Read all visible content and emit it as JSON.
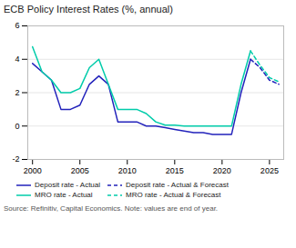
{
  "chart_data": {
    "type": "line",
    "title": "ECB Policy Interest Rates (%, annual)",
    "source": "Source: Refinitiv, Capital Economics. Note: values are end of year.",
    "x": [
      2000,
      2001,
      2002,
      2003,
      2004,
      2005,
      2006,
      2007,
      2008,
      2009,
      2010,
      2011,
      2012,
      2013,
      2014,
      2015,
      2016,
      2017,
      2018,
      2019,
      2020,
      2021,
      2022,
      2023,
      2024,
      2025,
      2026
    ],
    "series": [
      {
        "name": "Deposit rate - Actual",
        "color": "#2222bb",
        "line_style": "solid",
        "values": [
          3.75,
          3.25,
          2.75,
          1.0,
          1.0,
          1.25,
          2.5,
          3.0,
          2.5,
          0.25,
          0.25,
          0.25,
          0.0,
          0.0,
          -0.1,
          -0.2,
          -0.3,
          -0.4,
          -0.4,
          -0.5,
          -0.5,
          -0.5,
          2.0,
          4.0,
          null,
          null,
          null
        ]
      },
      {
        "name": "Deposit rate - Actual & Forecast",
        "color": "#2222bb",
        "line_style": "dashed",
        "values": [
          null,
          null,
          null,
          null,
          null,
          null,
          null,
          null,
          null,
          null,
          null,
          null,
          null,
          null,
          null,
          null,
          null,
          null,
          null,
          null,
          null,
          null,
          null,
          4.0,
          3.5,
          2.75,
          2.5
        ]
      },
      {
        "name": "MRO rate - Actual",
        "color": "#00ccaa",
        "line_style": "solid",
        "values": [
          4.75,
          3.25,
          2.75,
          2.0,
          2.0,
          2.25,
          3.5,
          4.0,
          2.5,
          1.0,
          1.0,
          1.0,
          0.75,
          0.25,
          0.05,
          0.05,
          0.0,
          0.0,
          0.0,
          0.0,
          0.0,
          0.0,
          2.5,
          4.5,
          null,
          null,
          null
        ]
      },
      {
        "name": "MRO rate - Actual & Forecast",
        "color": "#00ccaa",
        "line_style": "dashed",
        "values": [
          null,
          null,
          null,
          null,
          null,
          null,
          null,
          null,
          null,
          null,
          null,
          null,
          null,
          null,
          null,
          null,
          null,
          null,
          null,
          null,
          null,
          null,
          null,
          4.5,
          3.65,
          2.9,
          2.65
        ]
      }
    ],
    "xlim": [
      1999.5,
      2026.5
    ],
    "ylim": [
      -2,
      6
    ],
    "xticks": [
      2000,
      2005,
      2010,
      2015,
      2020,
      2025
    ],
    "yticks": [
      -2,
      0,
      2,
      4,
      6
    ],
    "grid": true,
    "legend": "bottom"
  }
}
